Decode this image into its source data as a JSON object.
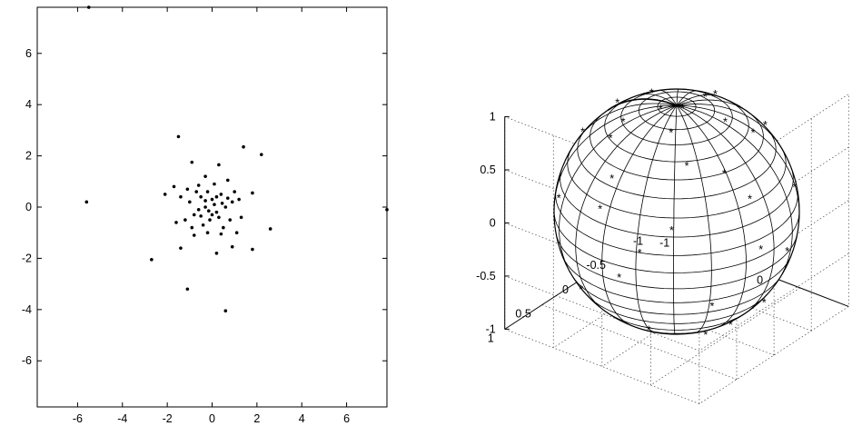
{
  "chart_data": [
    {
      "type": "scatter",
      "title": "",
      "xlabel": "",
      "ylabel": "",
      "xlim": [
        -7.8,
        7.8
      ],
      "ylim": [
        -7.8,
        7.8
      ],
      "grid": false,
      "x_ticks": [
        "-6",
        "-4",
        "-2",
        "0",
        "2",
        "4",
        "6"
      ],
      "x_tick_values": [
        -6,
        -4,
        -2,
        0,
        2,
        4,
        6
      ],
      "y_ticks": [
        "6",
        "4",
        "2",
        "0",
        "-2",
        "-4",
        "-6"
      ],
      "y_tick_values": [
        6,
        4,
        2,
        0,
        -2,
        -4,
        -6
      ],
      "marker": "dot",
      "points": [
        {
          "x": -5.5,
          "y": 7.8
        },
        {
          "x": -5.6,
          "y": 0.2
        },
        {
          "x": 7.8,
          "y": -0.1
        },
        {
          "x": -1.5,
          "y": 2.75
        },
        {
          "x": 1.4,
          "y": 2.35
        },
        {
          "x": 2.2,
          "y": 2.05
        },
        {
          "x": -0.9,
          "y": 1.75
        },
        {
          "x": 0.3,
          "y": 1.65
        },
        {
          "x": -0.3,
          "y": 1.2
        },
        {
          "x": 0.7,
          "y": 1.05
        },
        {
          "x": -1.7,
          "y": 0.8
        },
        {
          "x": -2.1,
          "y": 0.5
        },
        {
          "x": -1.4,
          "y": 0.4
        },
        {
          "x": 1.8,
          "y": 0.55
        },
        {
          "x": 1.2,
          "y": 0.3
        },
        {
          "x": 2.6,
          "y": -0.85
        },
        {
          "x": -1.6,
          "y": -0.6
        },
        {
          "x": 1.3,
          "y": -0.4
        },
        {
          "x": -1.4,
          "y": -1.6
        },
        {
          "x": 0.9,
          "y": -1.55
        },
        {
          "x": 1.8,
          "y": -1.65
        },
        {
          "x": 0.2,
          "y": -1.8
        },
        {
          "x": -2.7,
          "y": -2.05
        },
        {
          "x": -1.1,
          "y": -3.2
        },
        {
          "x": 0.6,
          "y": -4.05
        },
        {
          "x": -0.8,
          "y": -1.1
        },
        {
          "x": -0.2,
          "y": -1.0
        },
        {
          "x": 0.4,
          "y": -1.05
        },
        {
          "x": -0.6,
          "y": 0.85
        },
        {
          "x": 0.1,
          "y": 0.9
        },
        {
          "x": -1.0,
          "y": 0.2
        },
        {
          "x": -0.8,
          "y": -0.3
        },
        {
          "x": -0.5,
          "y": 0.4
        },
        {
          "x": -0.3,
          "y": 0.0
        },
        {
          "x": 0.0,
          "y": 0.3
        },
        {
          "x": 0.2,
          "y": -0.2
        },
        {
          "x": 0.4,
          "y": 0.5
        },
        {
          "x": 0.6,
          "y": 0.0
        },
        {
          "x": 0.8,
          "y": -0.5
        },
        {
          "x": -0.1,
          "y": -0.5
        },
        {
          "x": 0.1,
          "y": 0.1
        },
        {
          "x": -0.4,
          "y": -0.7
        },
        {
          "x": 0.5,
          "y": -0.8
        },
        {
          "x": 1.0,
          "y": 0.6
        },
        {
          "x": -1.2,
          "y": -0.5
        },
        {
          "x": -0.7,
          "y": 0.6
        },
        {
          "x": 0.9,
          "y": 0.2
        },
        {
          "x": -0.2,
          "y": 0.6
        },
        {
          "x": 0.3,
          "y": -0.4
        },
        {
          "x": -0.6,
          "y": -0.1
        },
        {
          "x": -1.1,
          "y": 0.7
        },
        {
          "x": 1.1,
          "y": -1.0
        },
        {
          "x": -0.9,
          "y": -0.8
        },
        {
          "x": 0.0,
          "y": -0.3
        },
        {
          "x": 0.2,
          "y": 0.4
        },
        {
          "x": -0.3,
          "y": 0.25
        },
        {
          "x": 0.7,
          "y": 0.35
        },
        {
          "x": -0.5,
          "y": -0.35
        },
        {
          "x": 0.45,
          "y": 0.15
        },
        {
          "x": -0.15,
          "y": -0.15
        }
      ]
    },
    {
      "type": "scatter3d",
      "title": "",
      "xlabel": "",
      "ylabel": "",
      "zlabel": "",
      "xlim": [
        -1,
        1
      ],
      "ylim": [
        -1,
        1
      ],
      "zlim": [
        -1,
        1
      ],
      "grid": true,
      "z_ticks": [
        "1",
        "0.5",
        "0",
        "-0.5",
        "-1"
      ],
      "z_tick_values": [
        1,
        0.5,
        0,
        -0.5,
        -1
      ],
      "y_ticks": [
        "1",
        "0.5",
        "0",
        "-0.5",
        "-1"
      ],
      "y_tick_values": [
        1,
        0.5,
        0,
        -0.5,
        -1
      ],
      "x_ticks": [
        "-1",
        "0"
      ],
      "x_tick_values": [
        -1,
        0
      ],
      "surface": "unit sphere mesh",
      "marker": "asterisk",
      "points": [
        {
          "az": 10,
          "el": 86
        },
        {
          "az": 60,
          "el": 70
        },
        {
          "az": 130,
          "el": 64
        },
        {
          "az": 200,
          "el": 68
        },
        {
          "az": 280,
          "el": 72
        },
        {
          "az": 340,
          "el": 66
        },
        {
          "az": 20,
          "el": 45
        },
        {
          "az": 95,
          "el": 40
        },
        {
          "az": 160,
          "el": 38
        },
        {
          "az": 240,
          "el": 44
        },
        {
          "az": 300,
          "el": 40
        },
        {
          "az": 55,
          "el": 22
        },
        {
          "az": 130,
          "el": 15
        },
        {
          "az": 200,
          "el": 20
        },
        {
          "az": 265,
          "el": 25
        },
        {
          "az": 330,
          "el": 18
        },
        {
          "az": 10,
          "el": 5
        },
        {
          "az": 80,
          "el": -5
        },
        {
          "az": 150,
          "el": -8
        },
        {
          "az": 225,
          "el": -3
        },
        {
          "az": 295,
          "el": 0
        },
        {
          "az": 35,
          "el": -20
        },
        {
          "az": 110,
          "el": -25
        },
        {
          "az": 180,
          "el": -22
        },
        {
          "az": 255,
          "el": -18
        },
        {
          "az": 320,
          "el": -28
        },
        {
          "az": 70,
          "el": -42
        },
        {
          "az": 140,
          "el": -45
        },
        {
          "az": 210,
          "el": -40
        },
        {
          "az": 285,
          "el": -46
        },
        {
          "az": 350,
          "el": -38
        },
        {
          "az": 25,
          "el": -60
        },
        {
          "az": 100,
          "el": -62
        },
        {
          "az": 175,
          "el": -58
        },
        {
          "az": 250,
          "el": -64
        },
        {
          "az": 315,
          "el": -60
        },
        {
          "az": 60,
          "el": -78
        },
        {
          "az": 190,
          "el": -80
        },
        {
          "az": 290,
          "el": -76
        },
        {
          "az": 120,
          "el": 82
        },
        {
          "az": 45,
          "el": 52
        },
        {
          "az": 185,
          "el": 50
        },
        {
          "az": 120,
          "el": 55
        },
        {
          "az": 10,
          "el": 30
        },
        {
          "az": 170,
          "el": 5
        },
        {
          "az": 240,
          "el": 8
        },
        {
          "az": 350,
          "el": -5
        },
        {
          "az": 70,
          "el": 10
        },
        {
          "az": 15,
          "el": -45
        },
        {
          "az": 230,
          "el": -30
        },
        {
          "az": 75,
          "el": -65
        },
        {
          "az": 330,
          "el": 52
        },
        {
          "az": 95,
          "el": 25
        },
        {
          "az": 265,
          "el": 55
        }
      ]
    }
  ]
}
